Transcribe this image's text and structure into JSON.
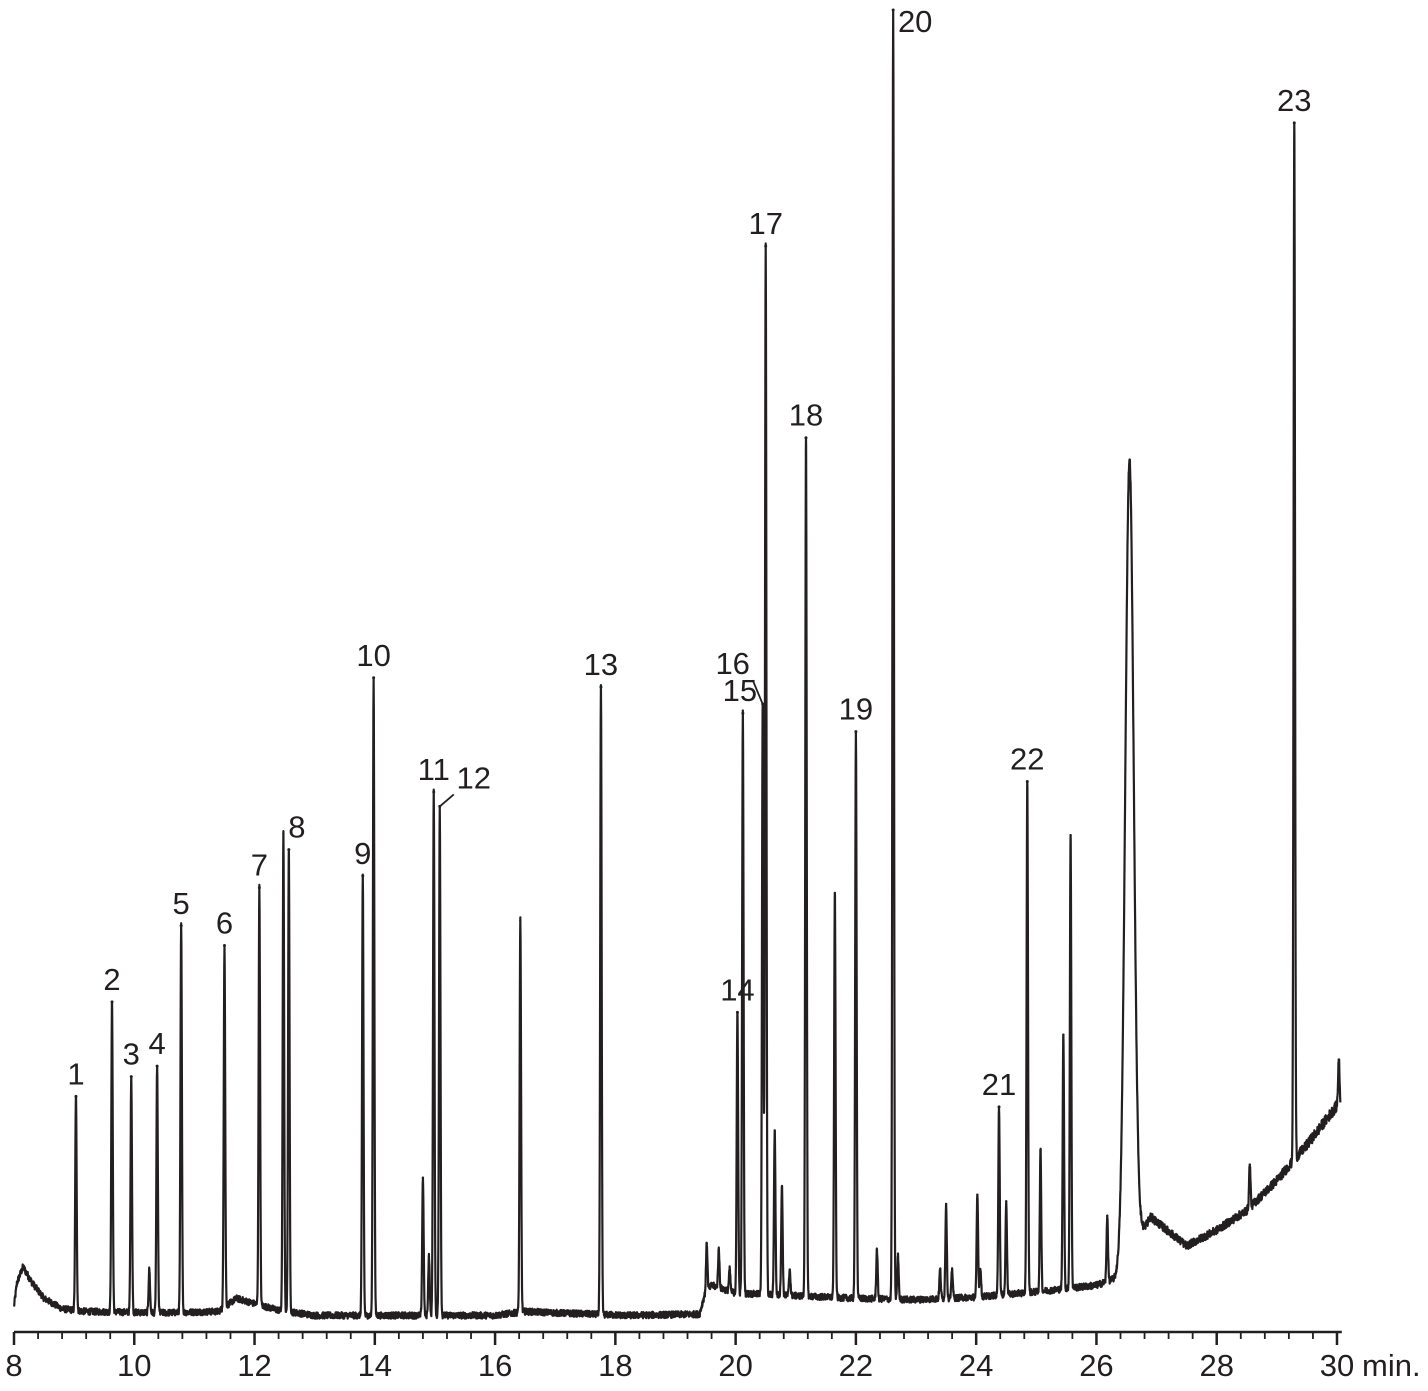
{
  "chart_data": {
    "type": "line",
    "title": "",
    "xlabel": "",
    "ylabel": "",
    "x_unit": "min.",
    "xlim": [
      8,
      30.1
    ],
    "ylim": [
      0,
      1.0
    ],
    "grid": false,
    "legend": "none",
    "colors": {
      "trace": "#231f20",
      "axis": "#231f20",
      "background": "#ffffff"
    },
    "x_ticks": [
      {
        "value": 8,
        "label": "8"
      },
      {
        "value": 10,
        "label": "10"
      },
      {
        "value": 12,
        "label": "12"
      },
      {
        "value": 14,
        "label": "14"
      },
      {
        "value": 16,
        "label": "16"
      },
      {
        "value": 18,
        "label": "18"
      },
      {
        "value": 20,
        "label": "20"
      },
      {
        "value": 22,
        "label": "22"
      },
      {
        "value": 24,
        "label": "24"
      },
      {
        "value": 26,
        "label": "26"
      },
      {
        "value": 28,
        "label": "28"
      },
      {
        "value": 30,
        "label": "30"
      }
    ],
    "minor_tick_step": 0.4,
    "baseline": [
      [
        8.0,
        0.012
      ],
      [
        8.05,
        0.03
      ],
      [
        8.15,
        0.042
      ],
      [
        8.3,
        0.03
      ],
      [
        8.5,
        0.018
      ],
      [
        8.8,
        0.01
      ],
      [
        9.2,
        0.008
      ],
      [
        10.5,
        0.007
      ],
      [
        11.4,
        0.008
      ],
      [
        11.7,
        0.018
      ],
      [
        12.0,
        0.014
      ],
      [
        12.4,
        0.009
      ],
      [
        13.0,
        0.005
      ],
      [
        14.0,
        0.005
      ],
      [
        16.0,
        0.005
      ],
      [
        16.5,
        0.008
      ],
      [
        17.0,
        0.007
      ],
      [
        18.2,
        0.005
      ],
      [
        19.4,
        0.006
      ],
      [
        19.48,
        0.02
      ],
      [
        19.6,
        0.028
      ],
      [
        20.0,
        0.022
      ],
      [
        21.0,
        0.02
      ],
      [
        22.0,
        0.018
      ],
      [
        23.0,
        0.017
      ],
      [
        24.0,
        0.019
      ],
      [
        25.0,
        0.023
      ],
      [
        26.0,
        0.028
      ],
      [
        26.3,
        0.033
      ],
      [
        26.9,
        0.08
      ],
      [
        27.5,
        0.058
      ],
      [
        28.0,
        0.07
      ],
      [
        28.5,
        0.085
      ],
      [
        29.0,
        0.108
      ],
      [
        29.5,
        0.135
      ],
      [
        30.05,
        0.168
      ]
    ],
    "peaks": [
      {
        "label": "1",
        "rt": 9.03,
        "height": 0.172
      },
      {
        "label": "2",
        "rt": 9.63,
        "height": 0.244
      },
      {
        "label": "3",
        "rt": 9.95,
        "height": 0.187
      },
      {
        "label": "4",
        "rt": 10.38,
        "height": 0.195
      },
      {
        "label": "5",
        "rt": 10.78,
        "height": 0.302
      },
      {
        "label": "6",
        "rt": 11.5,
        "height": 0.287
      },
      {
        "label": "7",
        "rt": 12.08,
        "height": 0.331
      },
      {
        "label": "8",
        "rt": 12.57,
        "height": 0.36
      },
      {
        "label": "9",
        "rt": 13.8,
        "height": 0.34
      },
      {
        "label": "10",
        "rt": 13.98,
        "height": 0.491
      },
      {
        "label": "11",
        "rt": 14.98,
        "height": 0.404
      },
      {
        "label": "12",
        "rt": 15.08,
        "height": 0.393
      },
      {
        "label": "13",
        "rt": 17.76,
        "height": 0.484
      },
      {
        "label": "14",
        "rt": 20.03,
        "height": 0.236
      },
      {
        "label": "15",
        "rt": 20.12,
        "height": 0.464
      },
      {
        "label": "16",
        "rt": 20.45,
        "height": 0.471
      },
      {
        "label": "17",
        "rt": 20.5,
        "height": 0.82
      },
      {
        "label": "18",
        "rt": 21.17,
        "height": 0.674
      },
      {
        "label": "19",
        "rt": 22.0,
        "height": 0.45
      },
      {
        "label": "20",
        "rt": 22.62,
        "height": 1.0
      },
      {
        "label": "21",
        "rt": 24.38,
        "height": 0.164
      },
      {
        "label": "22",
        "rt": 24.85,
        "height": 0.412
      },
      {
        "label": "23",
        "rt": 29.29,
        "height": 0.914
      }
    ],
    "unlabeled_peaks": [
      {
        "rt": 10.25,
        "height": 0.04
      },
      {
        "rt": 12.48,
        "height": 0.372
      },
      {
        "rt": 14.8,
        "height": 0.11
      },
      {
        "rt": 14.9,
        "height": 0.05
      },
      {
        "rt": 16.42,
        "height": 0.306
      },
      {
        "rt": 19.52,
        "height": 0.06
      },
      {
        "rt": 19.72,
        "height": 0.055
      },
      {
        "rt": 19.9,
        "height": 0.04
      },
      {
        "rt": 20.65,
        "height": 0.146
      },
      {
        "rt": 20.77,
        "height": 0.103
      },
      {
        "rt": 20.9,
        "height": 0.04
      },
      {
        "rt": 21.65,
        "height": 0.327
      },
      {
        "rt": 22.35,
        "height": 0.055
      },
      {
        "rt": 22.7,
        "height": 0.05
      },
      {
        "rt": 23.4,
        "height": 0.04
      },
      {
        "rt": 23.5,
        "height": 0.09
      },
      {
        "rt": 23.6,
        "height": 0.04
      },
      {
        "rt": 24.02,
        "height": 0.097
      },
      {
        "rt": 24.07,
        "height": 0.04
      },
      {
        "rt": 24.5,
        "height": 0.092
      },
      {
        "rt": 25.07,
        "height": 0.131
      },
      {
        "rt": 25.45,
        "height": 0.219
      },
      {
        "rt": 25.57,
        "height": 0.371
      },
      {
        "rt": 26.18,
        "height": 0.081
      },
      {
        "rt": 26.55,
        "height": 0.657
      },
      {
        "rt": 28.55,
        "height": 0.12
      },
      {
        "rt": 30.03,
        "height": 0.2
      }
    ]
  }
}
